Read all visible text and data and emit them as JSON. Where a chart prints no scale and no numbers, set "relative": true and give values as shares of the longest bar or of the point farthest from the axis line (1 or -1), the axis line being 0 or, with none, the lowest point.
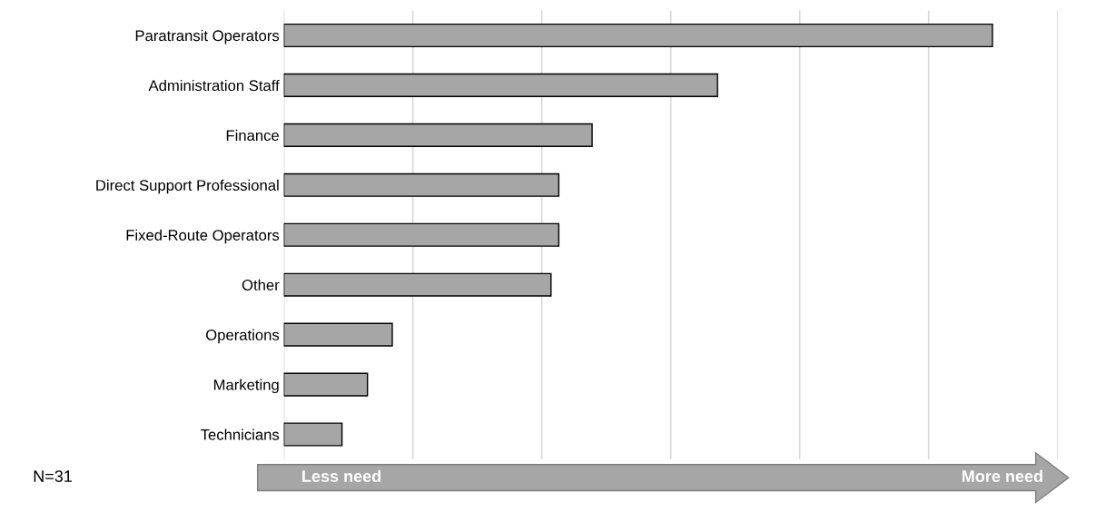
{
  "chart_data": {
    "type": "bar",
    "orientation": "horizontal",
    "relative": true,
    "categories": [
      "Paratransit Operators",
      "Administration Staff",
      "Finance",
      "Direct Support Professional",
      "Fixed-Route Operators",
      "Other",
      "Operations",
      "Marketing",
      "Technicians"
    ],
    "values": [
      1,
      0.612,
      0.435,
      0.388,
      0.388,
      0.377,
      0.153,
      0.118,
      0.082
    ],
    "color": "#a6a6a6",
    "grid": "x",
    "annotations": [
      "N=31",
      "Less need",
      "More need"
    ]
  }
}
